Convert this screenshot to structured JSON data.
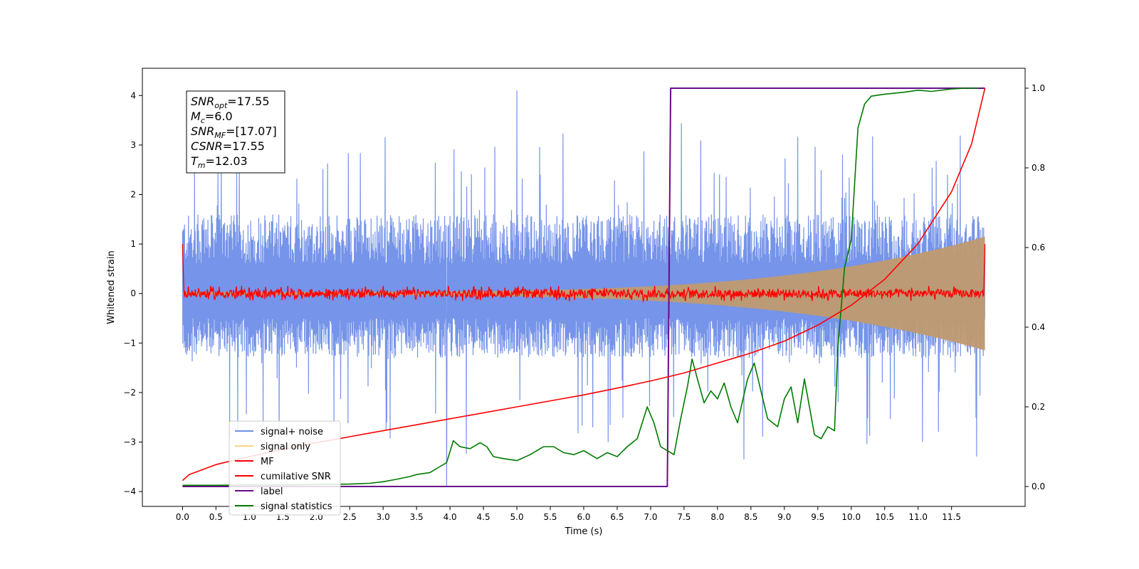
{
  "chart_data": {
    "type": "line",
    "xlabel": "Time (s)",
    "ylabel": "Whitened strain",
    "y2label": "",
    "xlim": [
      -0.6,
      12.6
    ],
    "ylim": [
      -4.3,
      4.55
    ],
    "y2lim": [
      -0.05,
      1.05
    ],
    "xticks": [
      "0.0",
      "0.5",
      "1.0",
      "1.5",
      "2.0",
      "2.5",
      "3.0",
      "3.5",
      "4.0",
      "4.5",
      "5.0",
      "5.5",
      "6.0",
      "6.5",
      "7.0",
      "7.5",
      "8.0",
      "8.5",
      "9.0",
      "9.5",
      "10.0",
      "10.5",
      "11.0",
      "11.5"
    ],
    "yticks": [
      "−4",
      "−3",
      "−2",
      "−1",
      "0",
      "1",
      "2",
      "3",
      "4"
    ],
    "y2ticks": [
      "0.0",
      "0.2",
      "0.4",
      "0.6",
      "0.8",
      "1.0"
    ],
    "grid": false,
    "legend_position": "lower-left",
    "annotation": {
      "lines": [
        {
          "base": "SNR",
          "sub": "opt",
          "rest": "=17.55"
        },
        {
          "base": "M",
          "sub": "c",
          "rest": "=6.0"
        },
        {
          "base": "SNR",
          "sub": "MF",
          "rest": "=[17.07]"
        },
        {
          "base": "CSNR",
          "sub": "",
          "rest": "=17.55"
        },
        {
          "base": "T",
          "sub": "m",
          "rest": "=12.03"
        }
      ]
    },
    "series": [
      {
        "name": "signal+ noise",
        "color": "#6f8ee8",
        "axis": "left",
        "kind": "noise-band",
        "x_range": [
          0.0,
          12.0
        ],
        "typical_range": [
          -1.3,
          1.6
        ],
        "peak_max": 4.1,
        "peak_min": -3.9
      },
      {
        "name": "signal only",
        "color": "#ffc966",
        "axis": "left",
        "kind": "chirp-envelope",
        "x_range": [
          0.0,
          12.0
        ],
        "amplitude_start": 0.03,
        "amplitude_end": 1.15
      },
      {
        "name": "MF",
        "color": "#ff0000",
        "axis": "left",
        "kind": "flat-noise",
        "x_range": [
          0.0,
          12.0
        ],
        "level": 0.0,
        "jitter": 0.12,
        "start_value": 1.0,
        "end_value": 1.0
      },
      {
        "name": "cumilative SNR",
        "color": "#ff0000",
        "axis": "right",
        "x": [
          0.0,
          0.1,
          0.5,
          1.0,
          1.5,
          2.0,
          2.5,
          3.0,
          3.5,
          4.0,
          4.5,
          5.0,
          5.5,
          6.0,
          6.5,
          7.0,
          7.5,
          8.0,
          8.5,
          9.0,
          9.5,
          10.0,
          10.5,
          11.0,
          11.5,
          11.8,
          12.0
        ],
        "y": [
          0.015,
          0.03,
          0.055,
          0.075,
          0.093,
          0.11,
          0.125,
          0.14,
          0.155,
          0.17,
          0.185,
          0.2,
          0.215,
          0.23,
          0.247,
          0.265,
          0.285,
          0.31,
          0.335,
          0.365,
          0.405,
          0.455,
          0.52,
          0.61,
          0.74,
          0.86,
          1.0
        ]
      },
      {
        "name": "label",
        "color": "#6a0a8a",
        "axis": "right",
        "x": [
          0.0,
          7.25,
          7.3,
          12.0
        ],
        "y": [
          0.0,
          0.0,
          1.0,
          1.0
        ]
      },
      {
        "name": "signal statistics",
        "color": "#007a00",
        "axis": "right",
        "x": [
          0.0,
          0.5,
          1.0,
          1.5,
          2.0,
          2.5,
          2.8,
          3.0,
          3.2,
          3.4,
          3.5,
          3.7,
          3.85,
          3.95,
          4.05,
          4.15,
          4.3,
          4.45,
          4.55,
          4.65,
          4.8,
          5.0,
          5.2,
          5.4,
          5.55,
          5.7,
          5.85,
          6.0,
          6.2,
          6.35,
          6.5,
          6.65,
          6.8,
          6.95,
          7.05,
          7.15,
          7.25,
          7.35,
          7.45,
          7.55,
          7.62,
          7.7,
          7.8,
          7.9,
          8.0,
          8.1,
          8.2,
          8.3,
          8.45,
          8.55,
          8.65,
          8.75,
          8.9,
          9.0,
          9.1,
          9.2,
          9.3,
          9.45,
          9.55,
          9.65,
          9.75,
          9.8,
          9.9,
          10.0,
          10.1,
          10.2,
          10.3,
          10.5,
          10.8,
          11.0,
          11.2,
          11.5,
          11.7,
          11.9
        ],
        "y": [
          0.003,
          0.003,
          0.004,
          0.004,
          0.005,
          0.006,
          0.008,
          0.012,
          0.018,
          0.025,
          0.03,
          0.035,
          0.05,
          0.06,
          0.115,
          0.1,
          0.095,
          0.11,
          0.1,
          0.075,
          0.07,
          0.065,
          0.08,
          0.1,
          0.1,
          0.085,
          0.08,
          0.09,
          0.07,
          0.085,
          0.075,
          0.1,
          0.12,
          0.2,
          0.16,
          0.1,
          0.09,
          0.08,
          0.17,
          0.25,
          0.32,
          0.27,
          0.21,
          0.24,
          0.22,
          0.26,
          0.2,
          0.16,
          0.27,
          0.31,
          0.24,
          0.17,
          0.15,
          0.22,
          0.25,
          0.16,
          0.27,
          0.13,
          0.12,
          0.15,
          0.14,
          0.35,
          0.55,
          0.62,
          0.9,
          0.96,
          0.98,
          0.985,
          0.99,
          0.995,
          0.992,
          0.998,
          1.0,
          1.0
        ]
      }
    ]
  }
}
